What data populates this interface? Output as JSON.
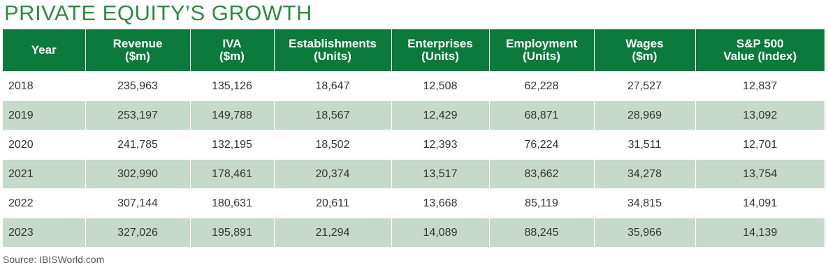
{
  "title": "PRIVATE EQUITY’S GROWTH",
  "source": "Source: IBISWorld.com",
  "colors": {
    "title": "#2e8b3e",
    "header_bg": "#0b7a3a",
    "row_band": "#c7d9cb",
    "row_plain": "#ffffff"
  },
  "chart_data": {
    "type": "table",
    "title": "PRIVATE EQUITY’S GROWTH",
    "columns": [
      {
        "line1": "Year",
        "line2": ""
      },
      {
        "line1": "Revenue",
        "line2": "($m)"
      },
      {
        "line1": "IVA",
        "line2": "($m)"
      },
      {
        "line1": "Establishments",
        "line2": "(Units)"
      },
      {
        "line1": "Enterprises",
        "line2": "(Units)"
      },
      {
        "line1": "Employment",
        "line2": "(Units)"
      },
      {
        "line1": "Wages",
        "line2": "($m)"
      },
      {
        "line1": "S&P 500",
        "line2": "Value (Index)"
      }
    ],
    "rows": [
      [
        "2018",
        "235,963",
        "135,126",
        "18,647",
        "12,508",
        "62,228",
        "27,527",
        "12,837"
      ],
      [
        "2019",
        "253,197",
        "149,788",
        "18,567",
        "12,429",
        "68,871",
        "28,969",
        "13,092"
      ],
      [
        "2020",
        "241,785",
        "132,195",
        "18,502",
        "12,393",
        "76,224",
        "31,511",
        "12,701"
      ],
      [
        "2021",
        "302,990",
        "178,461",
        "20,374",
        "13,517",
        "83,662",
        "34,278",
        "13,754"
      ],
      [
        "2022",
        "307,144",
        "180,631",
        "20,611",
        "13,668",
        "85,119",
        "34,815",
        "14,091"
      ],
      [
        "2023",
        "327,026",
        "195,891",
        "21,294",
        "14,089",
        "88,245",
        "35,966",
        "14,139"
      ]
    ]
  }
}
